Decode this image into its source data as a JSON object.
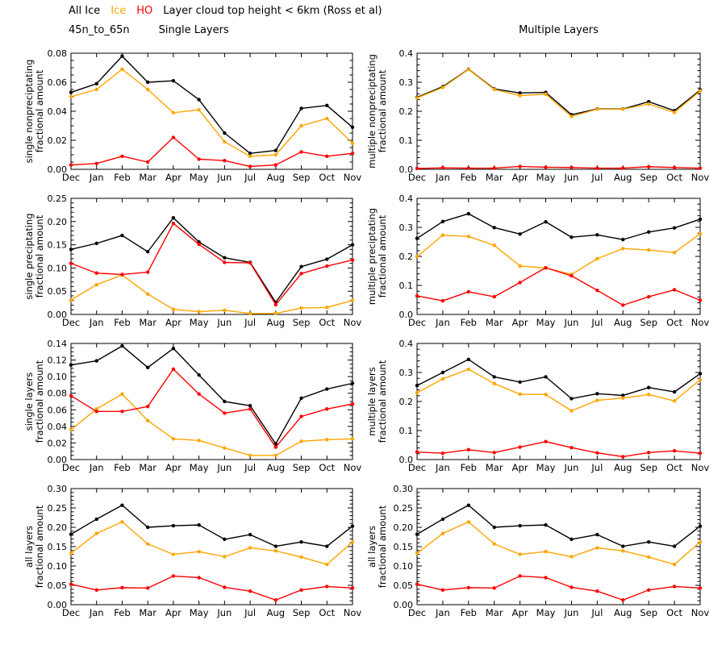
{
  "header": {
    "title_segments": [
      {
        "text": "All Ice",
        "color": "#000000"
      },
      {
        "text": "Ice",
        "color": "#FFA500"
      },
      {
        "text": "HO",
        "color": "#FF0000"
      },
      {
        "text": "Layer cloud top height < 6km (Ross et al)",
        "color": "#000000"
      }
    ],
    "subtitle_region": "45n_to_65n",
    "subtitle_left": "Single Layers",
    "subtitle_right": "Multiple Layers"
  },
  "legend": {
    "entries": [
      {
        "name": "All Ice",
        "color": "#000000"
      },
      {
        "name": "Ice",
        "color": "#FFA500"
      },
      {
        "name": "HO",
        "color": "#FF0000"
      }
    ]
  },
  "chart_data": [
    {
      "type": "line",
      "name": "single-nonpreciptating",
      "ylabel": [
        "single nonpreciptating",
        "fractional amount"
      ],
      "ylim": [
        0,
        0.08
      ],
      "ytick_step": 0.02,
      "yminor_step": 0.005,
      "ytick_decimals": 2,
      "categories": [
        "Dec",
        "Jan",
        "Feb",
        "Mar",
        "Apr",
        "May",
        "Jun",
        "Jul",
        "Aug",
        "Sep",
        "Oct",
        "Nov"
      ],
      "series": [
        {
          "name": "All Ice",
          "color": "#000000",
          "values": [
            0.053,
            0.059,
            0.078,
            0.06,
            0.061,
            0.048,
            0.025,
            0.011,
            0.013,
            0.042,
            0.044,
            0.029
          ]
        },
        {
          "name": "Ice",
          "color": "#FFA500",
          "values": [
            0.05,
            0.055,
            0.069,
            0.055,
            0.039,
            0.041,
            0.019,
            0.009,
            0.01,
            0.03,
            0.035,
            0.018
          ]
        },
        {
          "name": "HO",
          "color": "#FF0000",
          "values": [
            0.003,
            0.004,
            0.009,
            0.005,
            0.022,
            0.007,
            0.006,
            0.002,
            0.003,
            0.012,
            0.009,
            0.011
          ]
        }
      ]
    },
    {
      "type": "line",
      "name": "multiple-nonpreciptating",
      "ylabel": [
        "multiple nonpreciptating",
        "fractional amount"
      ],
      "ylim": [
        0,
        0.4
      ],
      "ytick_step": 0.1,
      "yminor_step": 0.02,
      "ytick_decimals": 1,
      "categories": [
        "Dec",
        "Jan",
        "Feb",
        "Mar",
        "Apr",
        "May",
        "Jun",
        "Jul",
        "Aug",
        "Sep",
        "Oct",
        "Nov"
      ],
      "series": [
        {
          "name": "All Ice",
          "color": "#000000",
          "values": [
            0.248,
            0.285,
            0.345,
            0.277,
            0.263,
            0.265,
            0.188,
            0.208,
            0.208,
            0.233,
            0.202,
            0.273
          ]
        },
        {
          "name": "Ice",
          "color": "#FFA500",
          "values": [
            0.246,
            0.282,
            0.344,
            0.275,
            0.254,
            0.259,
            0.182,
            0.207,
            0.207,
            0.225,
            0.196,
            0.27
          ]
        },
        {
          "name": "HO",
          "color": "#FF0000",
          "values": [
            0.003,
            0.005,
            0.004,
            0.004,
            0.01,
            0.007,
            0.006,
            0.004,
            0.004,
            0.009,
            0.006,
            0.004
          ]
        }
      ]
    },
    {
      "type": "line",
      "name": "single-preciptating",
      "ylabel": [
        "single preciptating",
        "fractional amount"
      ],
      "ylim": [
        0,
        0.25
      ],
      "ytick_step": 0.05,
      "yminor_step": 0.01,
      "ytick_decimals": 2,
      "categories": [
        "Dec",
        "Jan",
        "Feb",
        "Mar",
        "Apr",
        "May",
        "Jun",
        "Jul",
        "Aug",
        "Sep",
        "Oct",
        "Nov"
      ],
      "series": [
        {
          "name": "All Ice",
          "color": "#000000",
          "values": [
            0.14,
            0.153,
            0.17,
            0.135,
            0.208,
            0.156,
            0.122,
            0.112,
            0.026,
            0.103,
            0.119,
            0.15
          ]
        },
        {
          "name": "Ice",
          "color": "#FFA500",
          "values": [
            0.031,
            0.064,
            0.085,
            0.044,
            0.011,
            0.006,
            0.009,
            0.002,
            0.002,
            0.014,
            0.015,
            0.03
          ]
        },
        {
          "name": "HO",
          "color": "#FF0000",
          "values": [
            0.11,
            0.089,
            0.086,
            0.091,
            0.196,
            0.151,
            0.112,
            0.111,
            0.021,
            0.088,
            0.104,
            0.117
          ]
        }
      ]
    },
    {
      "type": "line",
      "name": "multiple-preciptating",
      "ylabel": [
        "multiple preciptating",
        "fractional amount"
      ],
      "ylim": [
        0,
        0.4
      ],
      "ytick_step": 0.1,
      "yminor_step": 0.02,
      "ytick_decimals": 1,
      "categories": [
        "Dec",
        "Jan",
        "Feb",
        "Mar",
        "Apr",
        "May",
        "Jun",
        "Jul",
        "Aug",
        "Sep",
        "Oct",
        "Nov"
      ],
      "series": [
        {
          "name": "All Ice",
          "color": "#000000",
          "values": [
            0.262,
            0.32,
            0.347,
            0.299,
            0.277,
            0.319,
            0.266,
            0.274,
            0.258,
            0.284,
            0.298,
            0.328
          ]
        },
        {
          "name": "Ice",
          "color": "#FFA500",
          "values": [
            0.199,
            0.273,
            0.269,
            0.238,
            0.167,
            0.16,
            0.138,
            0.192,
            0.227,
            0.222,
            0.213,
            0.278
          ]
        },
        {
          "name": "HO",
          "color": "#FF0000",
          "values": [
            0.064,
            0.047,
            0.078,
            0.061,
            0.11,
            0.161,
            0.133,
            0.083,
            0.032,
            0.061,
            0.085,
            0.049
          ]
        }
      ]
    },
    {
      "type": "line",
      "name": "single-layers",
      "ylabel": [
        "single layers",
        "fractional amount"
      ],
      "ylim": [
        0,
        0.14
      ],
      "ytick_step": 0.02,
      "yminor_step": 0.005,
      "ytick_decimals": 2,
      "categories": [
        "Dec",
        "Jan",
        "Feb",
        "Mar",
        "Apr",
        "May",
        "Jun",
        "Jul",
        "Aug",
        "Sep",
        "Oct",
        "Nov"
      ],
      "series": [
        {
          "name": "All Ice",
          "color": "#000000",
          "values": [
            0.114,
            0.119,
            0.137,
            0.111,
            0.134,
            0.102,
            0.07,
            0.065,
            0.019,
            0.074,
            0.085,
            0.092
          ]
        },
        {
          "name": "Ice",
          "color": "#FFA500",
          "values": [
            0.036,
            0.061,
            0.079,
            0.047,
            0.025,
            0.023,
            0.014,
            0.005,
            0.005,
            0.022,
            0.024,
            0.025
          ]
        },
        {
          "name": "HO",
          "color": "#FF0000",
          "values": [
            0.077,
            0.058,
            0.058,
            0.064,
            0.109,
            0.079,
            0.056,
            0.061,
            0.015,
            0.052,
            0.061,
            0.067
          ]
        }
      ]
    },
    {
      "type": "line",
      "name": "multiple-layers",
      "ylabel": [
        "multiple layers",
        "fractional amount"
      ],
      "ylim": [
        0,
        0.4
      ],
      "ytick_step": 0.1,
      "yminor_step": 0.02,
      "ytick_decimals": 1,
      "categories": [
        "Dec",
        "Jan",
        "Feb",
        "Mar",
        "Apr",
        "May",
        "Jun",
        "Jul",
        "Aug",
        "Sep",
        "Oct",
        "Nov"
      ],
      "series": [
        {
          "name": "All Ice",
          "color": "#000000",
          "values": [
            0.255,
            0.3,
            0.345,
            0.285,
            0.267,
            0.285,
            0.21,
            0.227,
            0.221,
            0.248,
            0.233,
            0.296
          ]
        },
        {
          "name": "Ice",
          "color": "#FFA500",
          "values": [
            0.23,
            0.278,
            0.311,
            0.262,
            0.225,
            0.224,
            0.168,
            0.204,
            0.212,
            0.224,
            0.202,
            0.275
          ]
        },
        {
          "name": "HO",
          "color": "#FF0000",
          "values": [
            0.026,
            0.022,
            0.034,
            0.024,
            0.043,
            0.062,
            0.041,
            0.023,
            0.01,
            0.024,
            0.03,
            0.022
          ]
        }
      ]
    },
    {
      "type": "line",
      "name": "all-layers-left",
      "ylabel": [
        "all layers",
        "fractional amount"
      ],
      "ylim": [
        0,
        0.3
      ],
      "ytick_step": 0.05,
      "yminor_step": 0.01,
      "ytick_decimals": 2,
      "categories": [
        "Dec",
        "Jan",
        "Feb",
        "Mar",
        "Apr",
        "May",
        "Jun",
        "Jul",
        "Aug",
        "Sep",
        "Oct",
        "Nov"
      ],
      "series": [
        {
          "name": "All Ice",
          "color": "#000000",
          "values": [
            0.182,
            0.221,
            0.257,
            0.2,
            0.204,
            0.206,
            0.169,
            0.181,
            0.151,
            0.162,
            0.151,
            0.203
          ]
        },
        {
          "name": "Ice",
          "color": "#FFA500",
          "values": [
            0.133,
            0.184,
            0.214,
            0.157,
            0.13,
            0.137,
            0.124,
            0.147,
            0.139,
            0.123,
            0.104,
            0.162
          ]
        },
        {
          "name": "HO",
          "color": "#FF0000",
          "values": [
            0.053,
            0.038,
            0.044,
            0.043,
            0.074,
            0.07,
            0.045,
            0.035,
            0.012,
            0.038,
            0.047,
            0.043
          ]
        }
      ]
    },
    {
      "type": "line",
      "name": "all-layers-right",
      "ylabel": [
        "all layers",
        "fractional amount"
      ],
      "ylim": [
        0,
        0.3
      ],
      "ytick_step": 0.05,
      "yminor_step": 0.01,
      "ytick_decimals": 2,
      "categories": [
        "Dec",
        "Jan",
        "Feb",
        "Mar",
        "Apr",
        "May",
        "Jun",
        "Jul",
        "Aug",
        "Sep",
        "Oct",
        "Nov"
      ],
      "series": [
        {
          "name": "All Ice",
          "color": "#000000",
          "values": [
            0.182,
            0.221,
            0.257,
            0.2,
            0.204,
            0.206,
            0.169,
            0.181,
            0.151,
            0.162,
            0.151,
            0.203
          ]
        },
        {
          "name": "Ice",
          "color": "#FFA500",
          "values": [
            0.133,
            0.184,
            0.214,
            0.157,
            0.13,
            0.137,
            0.124,
            0.147,
            0.139,
            0.123,
            0.104,
            0.162
          ]
        },
        {
          "name": "HO",
          "color": "#FF0000",
          "values": [
            0.053,
            0.038,
            0.044,
            0.043,
            0.074,
            0.07,
            0.045,
            0.035,
            0.012,
            0.038,
            0.047,
            0.043
          ]
        }
      ]
    }
  ]
}
